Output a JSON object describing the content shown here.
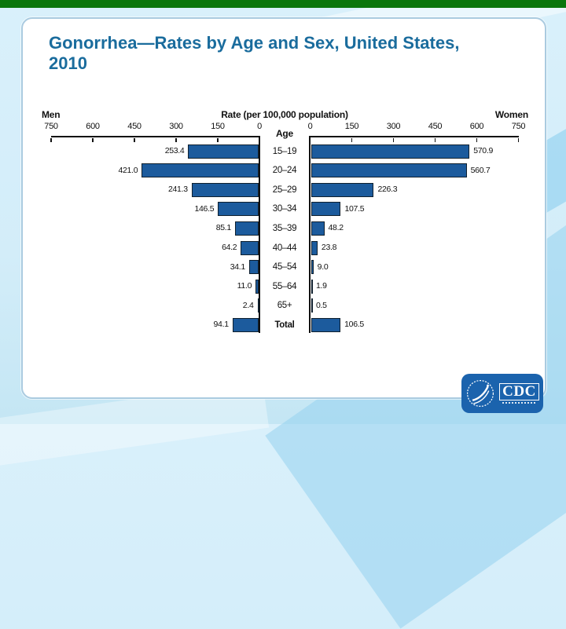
{
  "slide": {
    "title_lines": [
      "Gonorrhea—Rates by Age and Sex, United States,",
      "2010"
    ]
  },
  "chart_data": {
    "type": "bar",
    "orientation": "horizontal-pyramid",
    "title": "Rate (per 100,000 population)",
    "center_label": "Age",
    "categories": [
      "15–19",
      "20–24",
      "25–29",
      "30–34",
      "35–39",
      "40–44",
      "45–54",
      "55–64",
      "65+",
      "Total"
    ],
    "series": [
      {
        "name": "Men",
        "side": "left",
        "values": [
          253.4,
          421.0,
          241.3,
          146.5,
          85.1,
          64.2,
          34.1,
          11.0,
          2.4,
          94.1
        ]
      },
      {
        "name": "Women",
        "side": "right",
        "values": [
          570.9,
          560.7,
          226.3,
          107.5,
          48.2,
          23.8,
          9.0,
          1.9,
          0.5,
          106.5
        ]
      }
    ],
    "axis_ticks": [
      750,
      600,
      450,
      300,
      150,
      0
    ],
    "xlim": [
      0,
      750
    ],
    "grid": false,
    "bar_color": "#1c5b9d"
  },
  "logo": {
    "text": "CDC"
  },
  "colors": {
    "bar": "#1c5b9d",
    "title_text": "#1a6c9d",
    "top_bar_green": "#0a760c",
    "logo_blue": "#1b63ad",
    "background_blue": "#d5eefa"
  }
}
